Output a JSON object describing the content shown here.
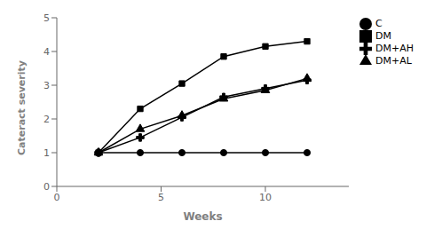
{
  "chart_data": {
    "type": "line",
    "x_label": "Weeks",
    "y_label": "Cateract severity",
    "color": "black",
    "series": [
      {
        "name": "C",
        "x": [
          2,
          4,
          6,
          8,
          10,
          12
        ],
        "values": [
          1.0,
          1.0,
          1.0,
          1.0,
          1.0,
          1.0
        ],
        "marker": "circle"
      },
      {
        "name": "DM",
        "x": [
          2,
          4,
          6,
          8,
          10,
          12
        ],
        "values": [
          1.0,
          2.3,
          3.05,
          3.85,
          4.15,
          4.3
        ],
        "marker": "square"
      },
      {
        "name": "DM+AL",
        "x": [
          2,
          4,
          6,
          8,
          10,
          12
        ],
        "values": [
          1.0,
          1.7,
          2.1,
          2.6,
          2.85,
          3.2
        ],
        "marker": "triangle"
      },
      {
        "name": "DM+AH",
        "x": [
          2,
          4,
          6,
          8,
          10,
          12
        ],
        "values": [
          1.0,
          1.45,
          2.05,
          2.65,
          2.9,
          3.15
        ],
        "marker": "plus"
      }
    ],
    "xlim": [
      0,
      14
    ],
    "ylim": [
      0,
      5
    ],
    "xticks": [
      0,
      5,
      10
    ],
    "yticks": [
      0,
      1,
      2,
      3,
      4,
      5
    ],
    "grid": false,
    "legend": "right"
  }
}
